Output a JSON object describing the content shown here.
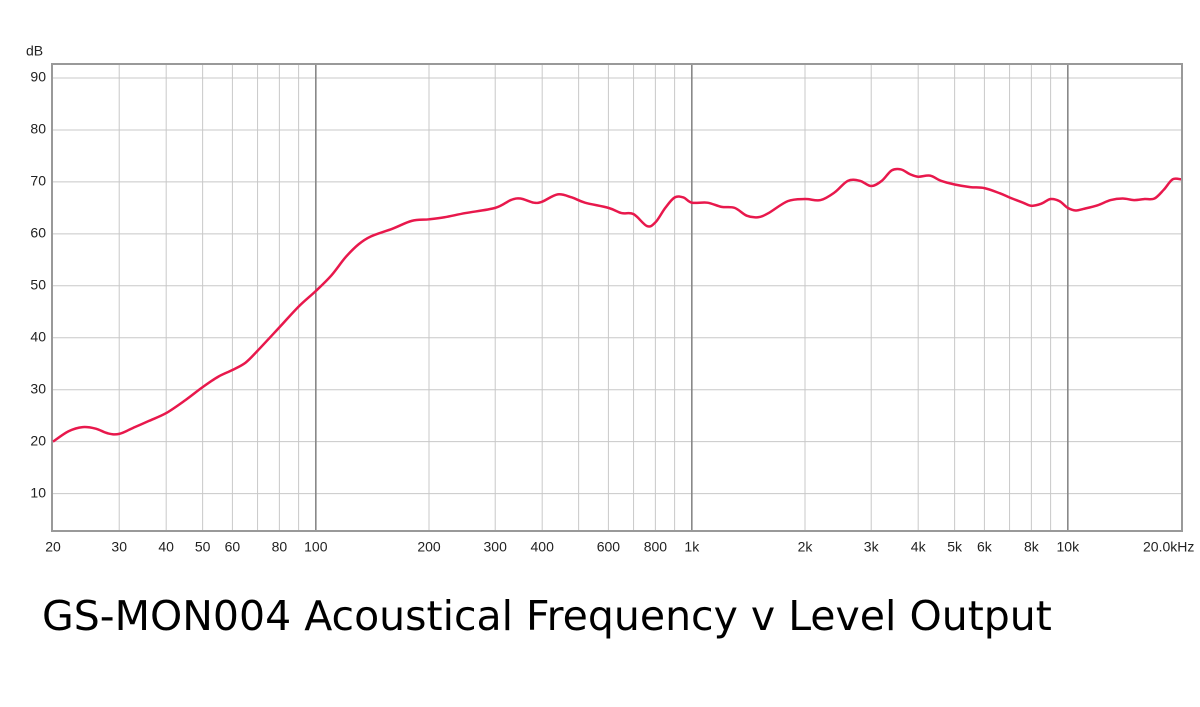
{
  "chart_data": {
    "type": "line",
    "title": "GS-MON004 Acoustical Frequency v Level Output",
    "y_label": "dB",
    "x_log": true,
    "grid": true,
    "xlim": [
      20,
      20000
    ],
    "ylim": [
      3,
      92.5
    ],
    "yticks": [
      10,
      20,
      30,
      40,
      50,
      60,
      70,
      80,
      90
    ],
    "xticks": [
      20,
      30,
      40,
      50,
      60,
      80,
      100,
      200,
      300,
      400,
      600,
      800,
      {
        "value": 1000,
        "label": "1k"
      },
      {
        "value": 2000,
        "label": "2k"
      },
      {
        "value": 3000,
        "label": "3k"
      },
      {
        "value": 4000,
        "label": "4k"
      },
      {
        "value": 5000,
        "label": "5k"
      },
      {
        "value": 6000,
        "label": "6k"
      },
      {
        "value": 8000,
        "label": "8k"
      },
      {
        "value": 10000,
        "label": "10k"
      },
      {
        "value": 20000,
        "label": "20.0kHz"
      }
    ],
    "x_minor_grid": [
      70,
      90,
      500,
      700,
      900,
      7000,
      9000
    ],
    "x_major_grid": [
      100,
      1000,
      10000
    ],
    "x": [
      20,
      22,
      24,
      26,
      28,
      30,
      33,
      36,
      40,
      45,
      50,
      55,
      60,
      65,
      70,
      80,
      90,
      100,
      110,
      120,
      130,
      140,
      160,
      180,
      200,
      220,
      250,
      300,
      330,
      350,
      380,
      400,
      440,
      480,
      520,
      600,
      650,
      700,
      760,
      800,
      850,
      900,
      950,
      1000,
      1100,
      1200,
      1300,
      1400,
      1500,
      1600,
      1800,
      2000,
      2200,
      2400,
      2600,
      2800,
      3000,
      3200,
      3400,
      3600,
      3800,
      4000,
      4300,
      4600,
      5000,
      5500,
      6000,
      6600,
      7000,
      7600,
      8000,
      8500,
      9000,
      9500,
      10000,
      10500,
      11000,
      12000,
      13000,
      14000,
      15000,
      16000,
      17000,
      18000,
      19000,
      20000
    ],
    "series": [
      {
        "color": "#e8184c",
        "values": [
          20,
          22,
          22.8,
          22.5,
          21.6,
          21.5,
          22.8,
          24,
          25.5,
          28,
          30.5,
          32.5,
          33.8,
          35.2,
          37.5,
          42,
          46,
          49,
          52,
          55.5,
          58,
          59.5,
          61,
          62.5,
          62.8,
          63.2,
          64,
          65,
          66.5,
          66.8,
          66,
          66.2,
          67.6,
          67,
          66,
          65,
          64,
          63.8,
          61.5,
          62.2,
          65,
          67,
          67,
          66,
          66,
          65.2,
          65,
          63.5,
          63.2,
          64,
          66.3,
          66.7,
          66.5,
          68,
          70.2,
          70.2,
          69.2,
          70.2,
          72.2,
          72.4,
          71.5,
          71,
          71.2,
          70.2,
          69.5,
          69,
          68.8,
          67.8,
          67,
          66,
          65.4,
          65.8,
          66.7,
          66.3,
          65,
          64.5,
          64.8,
          65.5,
          66.5,
          66.8,
          66.5,
          66.7,
          66.8,
          68.5,
          70.5,
          70.5
        ]
      }
    ]
  }
}
